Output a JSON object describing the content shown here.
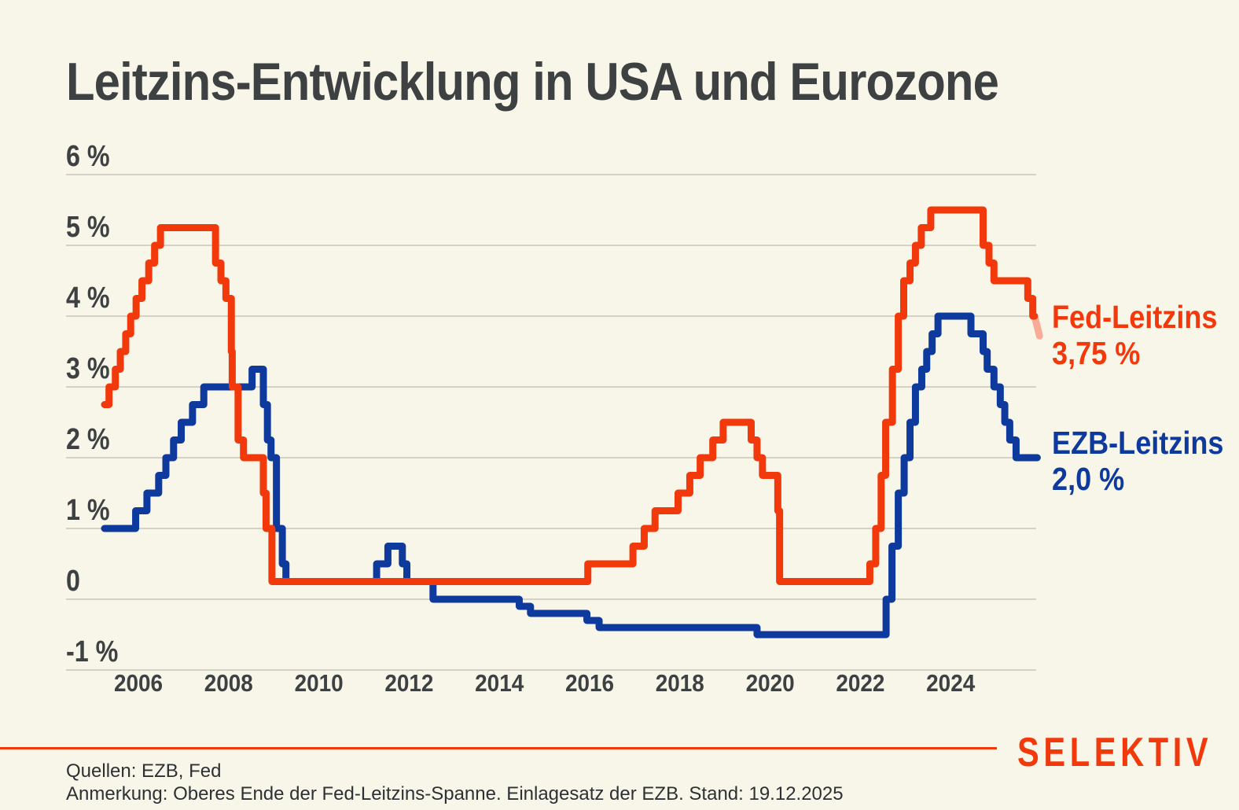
{
  "header": {
    "title": "Leitzins-Entwicklung in USA und Eurozone"
  },
  "chart_data": {
    "type": "line",
    "title": "Leitzins-Entwicklung in USA und Eurozone",
    "subtitle": "",
    "grid": true,
    "legend_position": "right",
    "x_axis": {
      "range": [
        2004.4,
        2025.97
      ],
      "ticks": [
        {
          "value": 2006,
          "label": "2006"
        },
        {
          "value": 2008,
          "label": "2008"
        },
        {
          "value": 2010,
          "label": "2010"
        },
        {
          "value": 2012,
          "label": "2012"
        },
        {
          "value": 2014,
          "label": "2014"
        },
        {
          "value": 2016,
          "label": "2016"
        },
        {
          "value": 2018,
          "label": "2018"
        },
        {
          "value": 2020,
          "label": "2020"
        },
        {
          "value": 2022,
          "label": "2022"
        },
        {
          "value": 2024,
          "label": "2024"
        }
      ]
    },
    "y_axis": {
      "unit": "%",
      "range": [
        -1,
        6
      ],
      "ticks": [
        {
          "value": 6,
          "label": "6 %"
        },
        {
          "value": 5,
          "label": "5 %"
        },
        {
          "value": 4,
          "label": "4 %"
        },
        {
          "value": 3,
          "label": "3 %"
        },
        {
          "value": 2,
          "label": "2 %"
        },
        {
          "value": 1,
          "label": "1 %"
        },
        {
          "value": 0,
          "label": "0"
        },
        {
          "value": -1,
          "label": "-1 %"
        }
      ]
    },
    "series": [
      {
        "id": "fed",
        "name": "Fed-Leitzins",
        "color": "#f2390b",
        "current_value": 3.75,
        "current_label": "3,75 %",
        "step_points_year_value": [
          [
            2005.25,
            2.75
          ],
          [
            2005.35,
            3.0
          ],
          [
            2005.49,
            3.25
          ],
          [
            2005.6,
            3.5
          ],
          [
            2005.72,
            3.75
          ],
          [
            2005.83,
            4.0
          ],
          [
            2005.95,
            4.25
          ],
          [
            2006.08,
            4.5
          ],
          [
            2006.23,
            4.75
          ],
          [
            2006.36,
            5.0
          ],
          [
            2006.49,
            5.25
          ],
          [
            2007.71,
            4.75
          ],
          [
            2007.83,
            4.5
          ],
          [
            2007.94,
            4.25
          ],
          [
            2008.06,
            3.5
          ],
          [
            2008.08,
            3.0
          ],
          [
            2008.21,
            2.25
          ],
          [
            2008.33,
            2.0
          ],
          [
            2008.77,
            1.5
          ],
          [
            2008.83,
            1.0
          ],
          [
            2008.96,
            0.25
          ],
          [
            2015.96,
            0.5
          ],
          [
            2016.96,
            0.75
          ],
          [
            2017.21,
            1.0
          ],
          [
            2017.45,
            1.25
          ],
          [
            2017.96,
            1.5
          ],
          [
            2018.22,
            1.75
          ],
          [
            2018.45,
            2.0
          ],
          [
            2018.73,
            2.25
          ],
          [
            2018.96,
            2.5
          ],
          [
            2019.58,
            2.25
          ],
          [
            2019.71,
            2.0
          ],
          [
            2019.83,
            1.75
          ],
          [
            2020.17,
            1.25
          ],
          [
            2020.21,
            0.25
          ],
          [
            2022.21,
            0.5
          ],
          [
            2022.34,
            1.0
          ],
          [
            2022.46,
            1.75
          ],
          [
            2022.56,
            2.5
          ],
          [
            2022.71,
            3.25
          ],
          [
            2022.84,
            4.0
          ],
          [
            2022.96,
            4.5
          ],
          [
            2023.1,
            4.75
          ],
          [
            2023.22,
            5.0
          ],
          [
            2023.35,
            5.25
          ],
          [
            2023.56,
            5.5
          ],
          [
            2024.72,
            5.0
          ],
          [
            2024.85,
            4.75
          ],
          [
            2024.96,
            4.5
          ],
          [
            2025.71,
            4.25
          ],
          [
            2025.82,
            4.0
          ]
        ],
        "end_year": 2025.86,
        "tail": {
          "color": "#f8ab96",
          "from": [
            2025.86,
            4.0
          ],
          "to": [
            2025.97,
            3.72
          ]
        }
      },
      {
        "id": "ezb",
        "name": "EZB-Leitzins",
        "color": "#0e3a9e",
        "current_value": 2.0,
        "current_label": "2,0 %",
        "step_points_year_value": [
          [
            2005.25,
            1.0
          ],
          [
            2005.94,
            1.25
          ],
          [
            2006.19,
            1.5
          ],
          [
            2006.45,
            1.75
          ],
          [
            2006.61,
            2.0
          ],
          [
            2006.78,
            2.25
          ],
          [
            2006.95,
            2.5
          ],
          [
            2007.2,
            2.75
          ],
          [
            2007.45,
            3.0
          ],
          [
            2008.52,
            3.25
          ],
          [
            2008.77,
            2.75
          ],
          [
            2008.86,
            2.25
          ],
          [
            2008.94,
            2.0
          ],
          [
            2009.06,
            1.0
          ],
          [
            2009.19,
            0.5
          ],
          [
            2009.27,
            0.25
          ],
          [
            2011.28,
            0.5
          ],
          [
            2011.53,
            0.75
          ],
          [
            2011.85,
            0.5
          ],
          [
            2011.95,
            0.25
          ],
          [
            2012.53,
            0.0
          ],
          [
            2014.44,
            -0.1
          ],
          [
            2014.69,
            -0.2
          ],
          [
            2015.94,
            -0.3
          ],
          [
            2016.21,
            -0.4
          ],
          [
            2019.71,
            -0.5
          ],
          [
            2022.57,
            0.0
          ],
          [
            2022.7,
            0.75
          ],
          [
            2022.84,
            1.5
          ],
          [
            2022.97,
            2.0
          ],
          [
            2023.1,
            2.5
          ],
          [
            2023.22,
            3.0
          ],
          [
            2023.36,
            3.25
          ],
          [
            2023.47,
            3.5
          ],
          [
            2023.59,
            3.75
          ],
          [
            2023.72,
            4.0
          ],
          [
            2024.45,
            3.75
          ],
          [
            2024.72,
            3.5
          ],
          [
            2024.81,
            3.25
          ],
          [
            2024.96,
            3.0
          ],
          [
            2025.1,
            2.75
          ],
          [
            2025.2,
            2.5
          ],
          [
            2025.31,
            2.25
          ],
          [
            2025.45,
            2.0
          ]
        ],
        "end_year": 2025.92
      }
    ]
  },
  "legend": {
    "fed": {
      "name": "Fed-Leitzins",
      "value": "3,75 %"
    },
    "ezb": {
      "name": "EZB-Leitzins",
      "value": "2,0 %"
    }
  },
  "footer": {
    "sources": "Quellen: EZB, Fed",
    "note": "Anmerkung: Oberes Ende der Fed-Leitzins-Spanne. Einlagesatz der EZB. Stand: 19.12.2025",
    "brand": "SELEKTIV"
  },
  "colors": {
    "background": "#f8f6e9",
    "fed_line": "#f2390b",
    "fed_latest_segment": "#f8ab96",
    "ezb_line": "#0e3a9e",
    "gridline": "#c8c5b9",
    "text": "#3d4142",
    "accent_rule": "#f2390b"
  }
}
